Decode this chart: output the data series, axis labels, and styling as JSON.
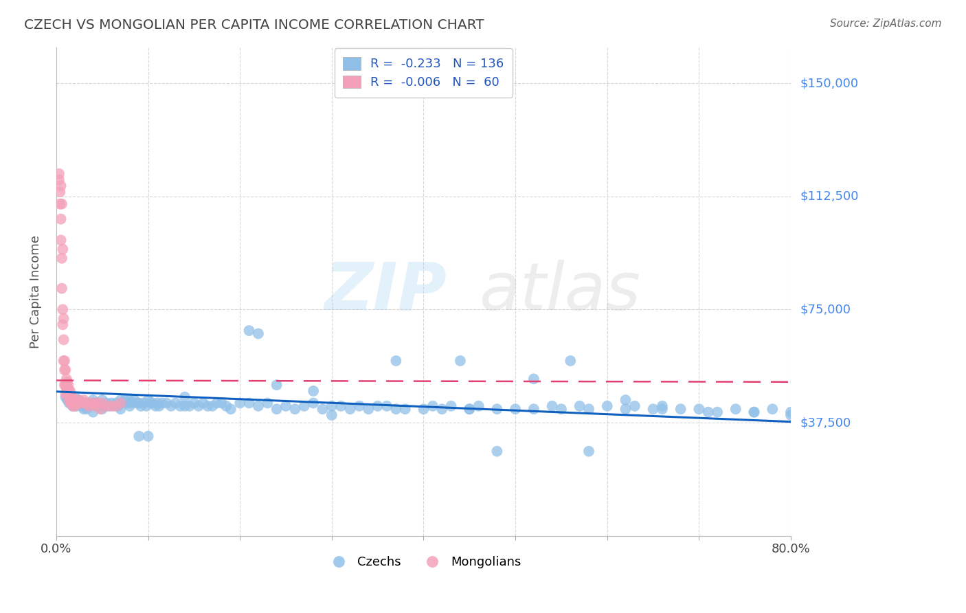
{
  "title": "CZECH VS MONGOLIAN PER CAPITA INCOME CORRELATION CHART",
  "source": "Source: ZipAtlas.com",
  "ylabel": "Per Capita Income",
  "xlim": [
    0.0,
    0.8
  ],
  "ylim": [
    0,
    162000
  ],
  "yticks": [
    0,
    37500,
    75000,
    112500,
    150000
  ],
  "ytick_labels": [
    "",
    "$37,500",
    "$75,000",
    "$112,500",
    "$150,000"
  ],
  "xtick_positions": [
    0.0,
    0.1,
    0.2,
    0.3,
    0.4,
    0.5,
    0.6,
    0.7,
    0.8
  ],
  "xtick_labels": [
    "0.0%",
    "",
    "",
    "",
    "",
    "",
    "",
    "",
    "80.0%"
  ],
  "czech_color": "#90c0e8",
  "mongolian_color": "#f4a0b8",
  "czech_R": -0.233,
  "czech_N": 136,
  "mongolian_R": -0.006,
  "mongolian_N": 60,
  "trend_blue": "#1060c0",
  "trend_pink": "#e04070",
  "bottom_legend_czech": "Czechs",
  "bottom_legend_mongolian": "Mongolians",
  "background_color": "#ffffff",
  "grid_color": "#cccccc",
  "title_color": "#444444",
  "ytick_color": "#4488ee",
  "source_color": "#666666",
  "czech_x": [
    0.01,
    0.012,
    0.014,
    0.015,
    0.016,
    0.017,
    0.018,
    0.019,
    0.02,
    0.021,
    0.022,
    0.025,
    0.027,
    0.028,
    0.03,
    0.032,
    0.033,
    0.035,
    0.037,
    0.04,
    0.042,
    0.044,
    0.045,
    0.047,
    0.05,
    0.052,
    0.055,
    0.057,
    0.06,
    0.062,
    0.065,
    0.067,
    0.07,
    0.072,
    0.075,
    0.077,
    0.08,
    0.082,
    0.085,
    0.088,
    0.09,
    0.092,
    0.095,
    0.098,
    0.1,
    0.102,
    0.105,
    0.108,
    0.11,
    0.112,
    0.115,
    0.12,
    0.125,
    0.13,
    0.135,
    0.14,
    0.145,
    0.15,
    0.155,
    0.16,
    0.165,
    0.17,
    0.175,
    0.18,
    0.185,
    0.19,
    0.2,
    0.21,
    0.22,
    0.23,
    0.24,
    0.25,
    0.26,
    0.27,
    0.28,
    0.29,
    0.3,
    0.31,
    0.32,
    0.33,
    0.34,
    0.35,
    0.37,
    0.38,
    0.4,
    0.41,
    0.42,
    0.43,
    0.45,
    0.46,
    0.48,
    0.5,
    0.52,
    0.54,
    0.55,
    0.57,
    0.58,
    0.6,
    0.62,
    0.63,
    0.65,
    0.66,
    0.68,
    0.7,
    0.71,
    0.74,
    0.76,
    0.78,
    0.8,
    0.21,
    0.22,
    0.24,
    0.37,
    0.44,
    0.56,
    0.62,
    0.14,
    0.36,
    0.28,
    0.48,
    0.52,
    0.58,
    0.66,
    0.72,
    0.76,
    0.8,
    0.45,
    0.3,
    0.1,
    0.09,
    0.08,
    0.07,
    0.05,
    0.04,
    0.03
  ],
  "czech_y": [
    46000,
    45000,
    44000,
    46000,
    45000,
    44000,
    43000,
    45000,
    46000,
    44000,
    43000,
    45000,
    44000,
    43000,
    44000,
    43000,
    42000,
    44000,
    43000,
    45000,
    44000,
    43000,
    44000,
    43000,
    45000,
    43000,
    44000,
    43000,
    44000,
    43000,
    44000,
    43000,
    45000,
    44000,
    45000,
    44000,
    45000,
    44000,
    45000,
    44000,
    44000,
    43000,
    44000,
    43000,
    45000,
    44000,
    44000,
    43000,
    44000,
    43000,
    44000,
    44000,
    43000,
    44000,
    43000,
    43000,
    43000,
    44000,
    43000,
    44000,
    43000,
    43000,
    44000,
    44000,
    43000,
    42000,
    44000,
    44000,
    43000,
    44000,
    42000,
    43000,
    42000,
    43000,
    44000,
    42000,
    43000,
    43000,
    42000,
    43000,
    42000,
    43000,
    42000,
    42000,
    42000,
    43000,
    42000,
    43000,
    42000,
    43000,
    42000,
    42000,
    42000,
    43000,
    42000,
    43000,
    42000,
    43000,
    42000,
    43000,
    42000,
    43000,
    42000,
    42000,
    41000,
    42000,
    41000,
    42000,
    41000,
    68000,
    67000,
    50000,
    58000,
    58000,
    58000,
    45000,
    46000,
    43000,
    48000,
    28000,
    52000,
    28000,
    42000,
    41000,
    41000,
    40000,
    42000,
    40000,
    33000,
    33000,
    43000,
    42000,
    42000,
    41000,
    42000
  ],
  "mongolian_x": [
    0.003,
    0.003,
    0.004,
    0.004,
    0.005,
    0.005,
    0.006,
    0.006,
    0.007,
    0.007,
    0.008,
    0.008,
    0.009,
    0.009,
    0.01,
    0.01,
    0.01,
    0.011,
    0.011,
    0.012,
    0.012,
    0.013,
    0.013,
    0.014,
    0.014,
    0.015,
    0.015,
    0.016,
    0.017,
    0.018,
    0.019,
    0.02,
    0.02,
    0.022,
    0.024,
    0.025,
    0.027,
    0.03,
    0.032,
    0.035,
    0.038,
    0.04,
    0.042,
    0.045,
    0.048,
    0.05,
    0.055,
    0.06,
    0.065,
    0.07,
    0.005,
    0.006,
    0.007,
    0.008,
    0.009,
    0.01,
    0.012,
    0.014,
    0.016,
    0.018
  ],
  "mongolian_y": [
    120000,
    118000,
    114000,
    110000,
    105000,
    98000,
    92000,
    82000,
    75000,
    70000,
    65000,
    58000,
    55000,
    50000,
    50000,
    47000,
    55000,
    52000,
    49000,
    51000,
    47000,
    50000,
    47000,
    48000,
    45000,
    48000,
    45000,
    44000,
    46000,
    45000,
    45000,
    45000,
    43000,
    44000,
    45000,
    44000,
    44000,
    45000,
    44000,
    43000,
    44000,
    44000,
    43000,
    44000,
    42000,
    44000,
    43000,
    43000,
    43000,
    44000,
    116000,
    110000,
    95000,
    72000,
    58000,
    50000,
    49000,
    47000,
    44000,
    43000
  ],
  "czech_trendline_y0": 47800,
  "czech_trendline_y1": 37800,
  "mongolian_trendline_y0": 51500,
  "mongolian_trendline_y1": 51000
}
